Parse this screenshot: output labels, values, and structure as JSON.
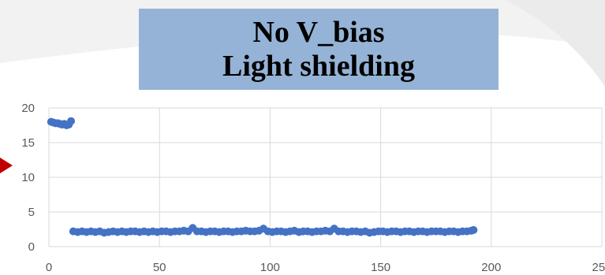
{
  "header": {
    "title_line1": "No V_bias",
    "title_line2": "Light shielding",
    "box_color": "#95b3d7"
  },
  "colors": {
    "series": "#4472c4",
    "grid": "#d9d9d9",
    "tick_text": "#595959",
    "arrow": "#c00000"
  },
  "chart_data": {
    "type": "scatter",
    "xlim": [
      0,
      250
    ],
    "ylim": [
      0,
      20
    ],
    "x_ticks": [
      "0",
      "50",
      "100",
      "150",
      "200",
      "250"
    ],
    "y_ticks": [
      "0",
      "5",
      "10",
      "15",
      "20"
    ],
    "grid": true,
    "series": [
      {
        "x": [
          1,
          2,
          3,
          4,
          5,
          6,
          7,
          8,
          9,
          10,
          11,
          13,
          15,
          17,
          19,
          21,
          23,
          25,
          27,
          29,
          31,
          33,
          35,
          37,
          39,
          41,
          43,
          45,
          47,
          49,
          51,
          53,
          55,
          57,
          59,
          61,
          63,
          65,
          67,
          69,
          71,
          73,
          75,
          77,
          79,
          81,
          83,
          85,
          87,
          89,
          91,
          93,
          95,
          97,
          99,
          101,
          103,
          105,
          107,
          109,
          111,
          113,
          115,
          117,
          119,
          121,
          123,
          125,
          127,
          129,
          131,
          133,
          135,
          137,
          139,
          141,
          143,
          145,
          147,
          149,
          151,
          153,
          155,
          157,
          159,
          161,
          163,
          165,
          167,
          169,
          171,
          173,
          175,
          177,
          179,
          181,
          183,
          185,
          187,
          189,
          191,
          192
        ],
        "y": [
          18.0,
          17.9,
          17.8,
          17.8,
          17.7,
          17.6,
          17.7,
          17.5,
          17.6,
          18.1,
          2.2,
          2.1,
          2.2,
          2.1,
          2.2,
          2.1,
          2.2,
          2.0,
          2.1,
          2.2,
          2.1,
          2.2,
          2.1,
          2.2,
          2.2,
          2.1,
          2.2,
          2.1,
          2.2,
          2.1,
          2.2,
          2.2,
          2.1,
          2.2,
          2.2,
          2.3,
          2.2,
          2.7,
          2.2,
          2.2,
          2.1,
          2.2,
          2.2,
          2.1,
          2.2,
          2.2,
          2.1,
          2.2,
          2.2,
          2.3,
          2.2,
          2.2,
          2.3,
          2.6,
          2.2,
          2.1,
          2.2,
          2.2,
          2.1,
          2.2,
          2.3,
          2.1,
          2.2,
          2.2,
          2.1,
          2.2,
          2.2,
          2.3,
          2.2,
          2.6,
          2.2,
          2.2,
          2.1,
          2.2,
          2.2,
          2.1,
          2.2,
          2.0,
          2.1,
          2.2,
          2.2,
          2.1,
          2.2,
          2.2,
          2.1,
          2.2,
          2.2,
          2.1,
          2.2,
          2.2,
          2.1,
          2.2,
          2.2,
          2.2,
          2.1,
          2.2,
          2.2,
          2.1,
          2.2,
          2.2,
          2.3,
          2.4
        ]
      }
    ]
  }
}
